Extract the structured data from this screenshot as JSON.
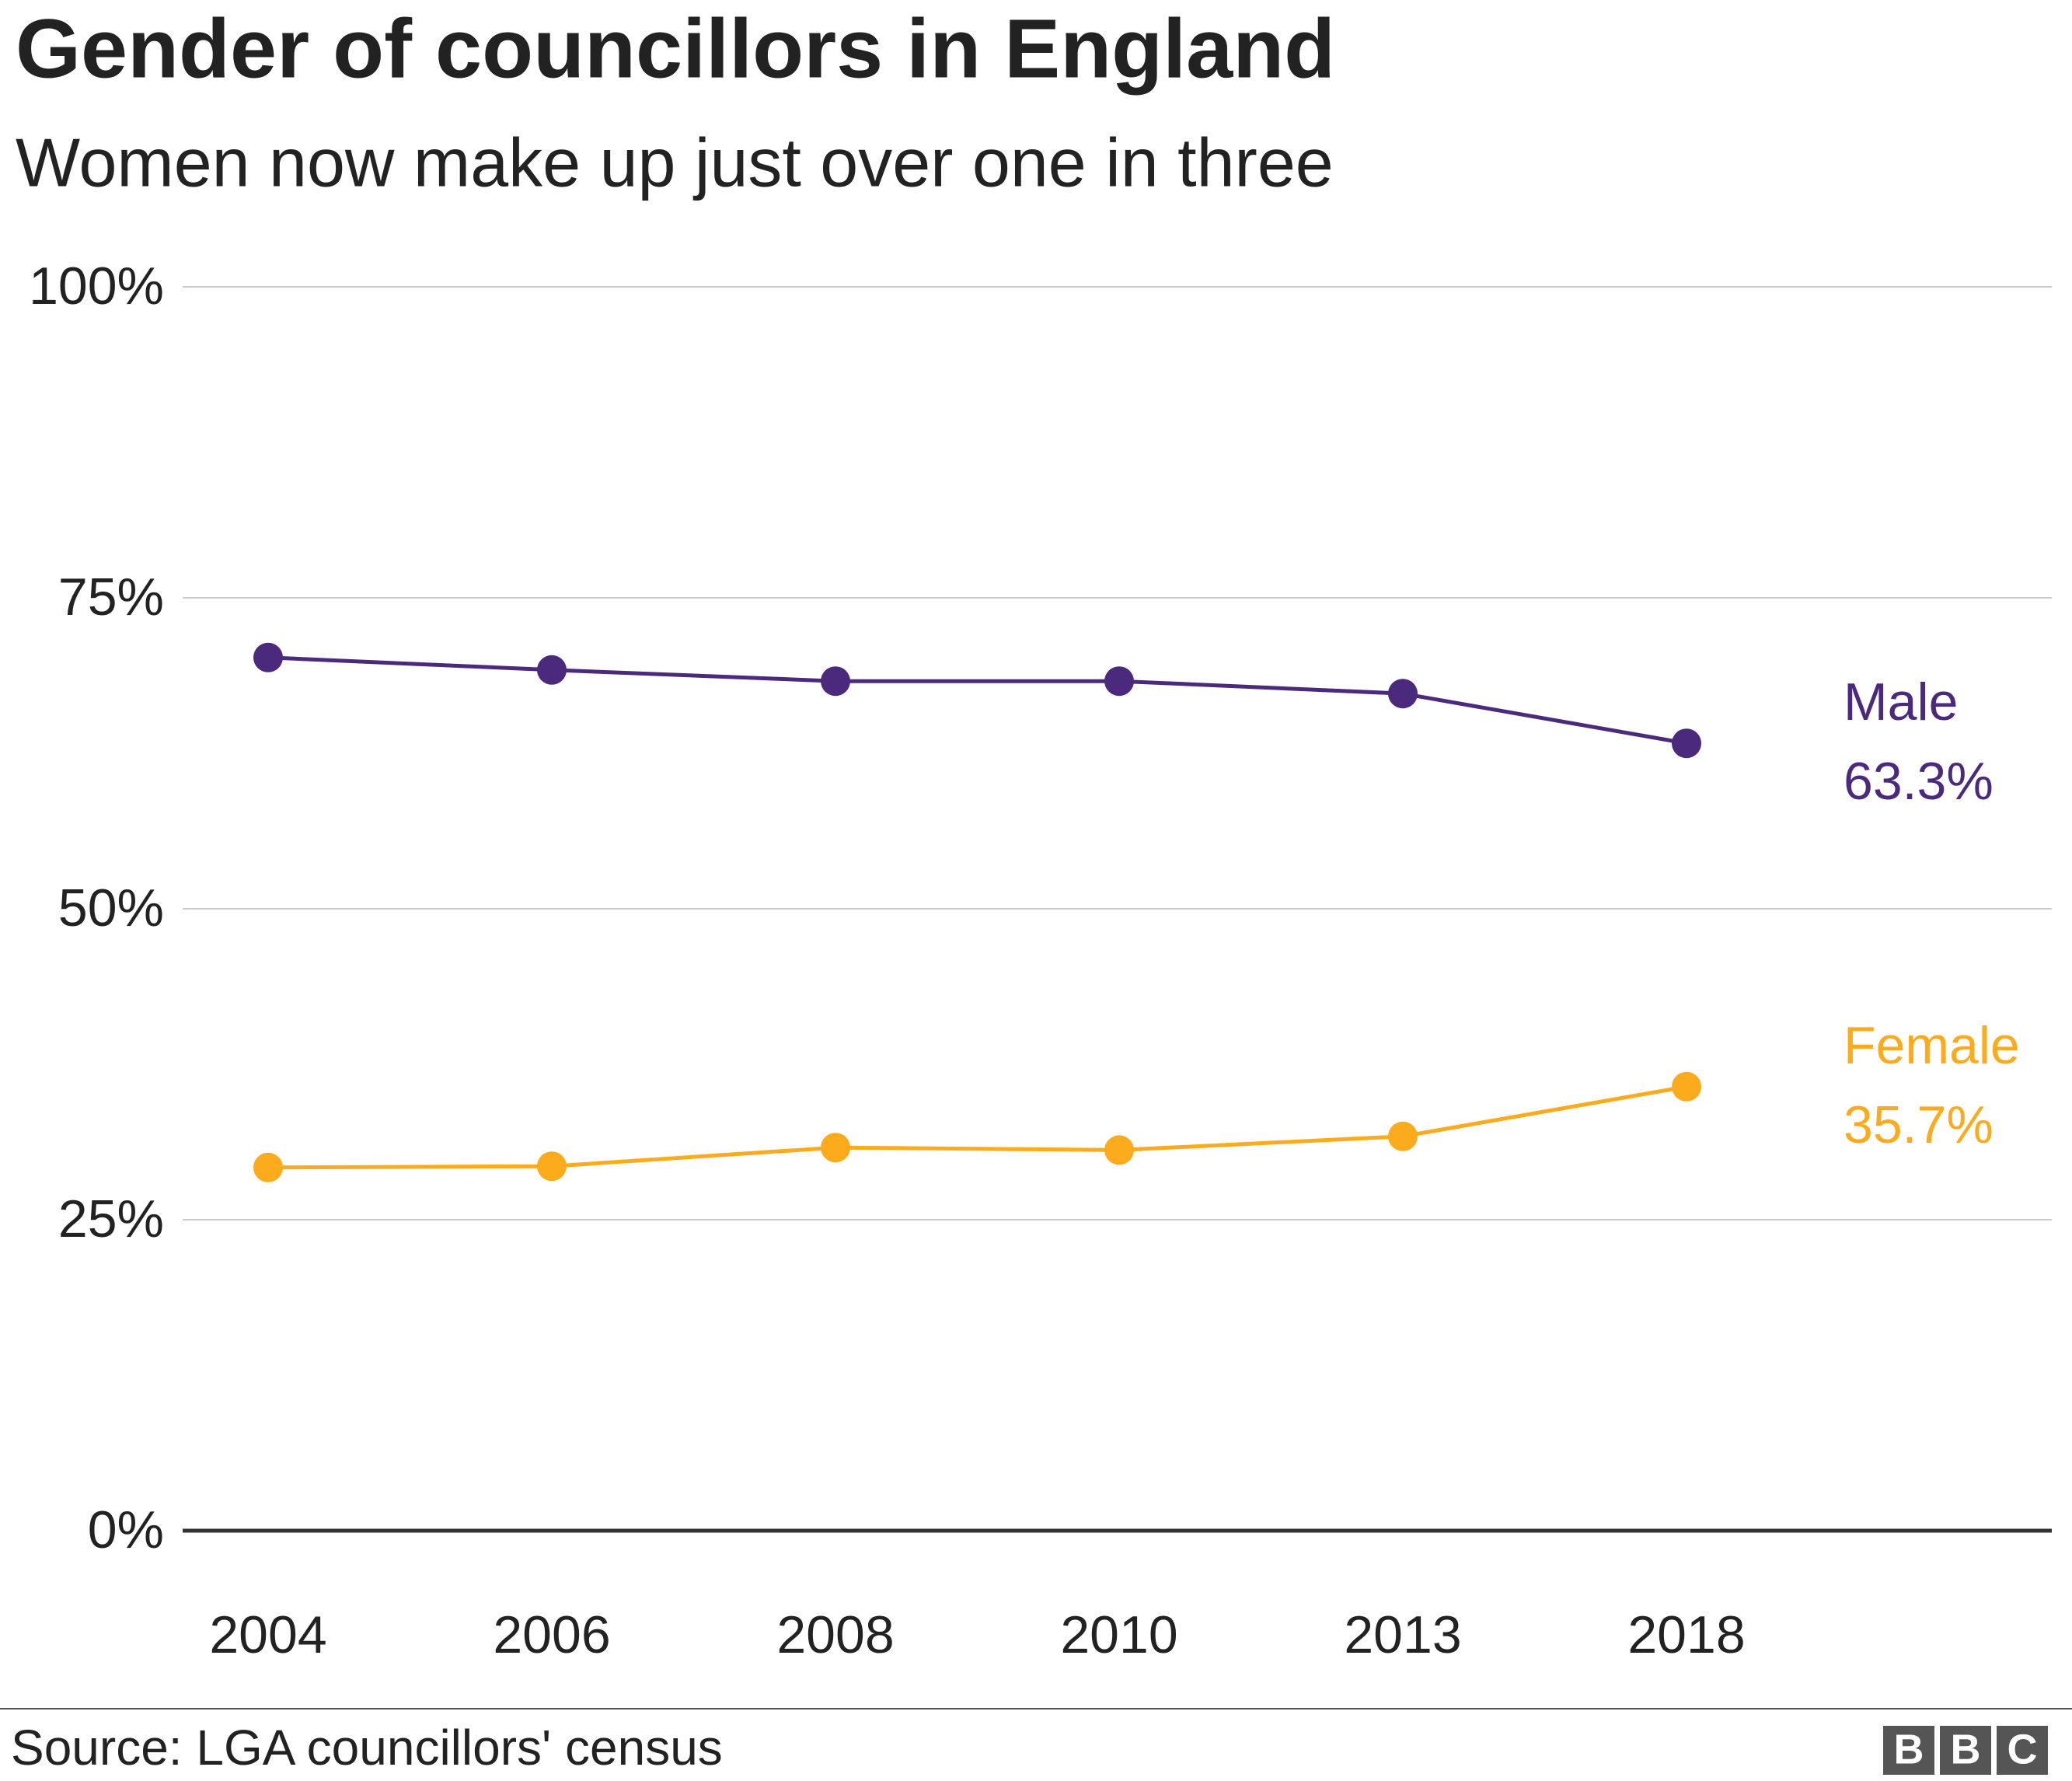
{
  "chart_data": {
    "type": "line",
    "title": "Gender of councillors in England",
    "subtitle": "Women now make up just over one in three",
    "categories": [
      "2004",
      "2006",
      "2008",
      "2010",
      "2013",
      "2018"
    ],
    "series": [
      {
        "name": "Male",
        "color": "#4b2a7d",
        "values": [
          70.2,
          69.2,
          68.3,
          68.3,
          67.3,
          63.3
        ],
        "value_labels": [
          null,
          null,
          null,
          null,
          null,
          "63.3%"
        ]
      },
      {
        "name": "Female",
        "color": "#fcab1d",
        "values": [
          29.2,
          29.3,
          30.8,
          30.6,
          31.7,
          35.7
        ],
        "value_labels": [
          null,
          null,
          null,
          null,
          null,
          "35.7%"
        ]
      }
    ],
    "ylim": [
      0,
      100
    ],
    "yticks": [
      {
        "value": 0,
        "label": "0%"
      },
      {
        "value": 25,
        "label": "25%"
      },
      {
        "value": 50,
        "label": "50%"
      },
      {
        "value": 75,
        "label": "75%"
      },
      {
        "value": 100,
        "label": "100%"
      }
    ],
    "grid": true,
    "source": "Source: LGA councillors' census",
    "logo": [
      "B",
      "B",
      "C"
    ]
  }
}
